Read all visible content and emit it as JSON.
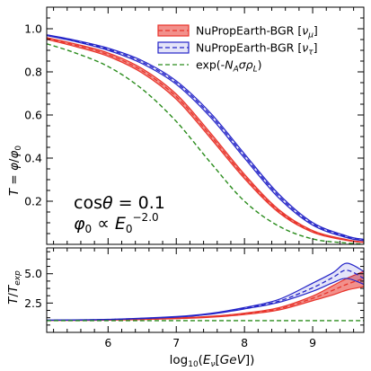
{
  "chart_data": [
    {
      "type": "line",
      "panel": "top",
      "title": "",
      "xlabel": "",
      "ylabel": "T = φ/φ₀",
      "xlim": [
        5.1,
        9.75
      ],
      "ylim": [
        0.0,
        1.1
      ],
      "yticks": [
        0.2,
        0.4,
        0.6,
        0.8,
        1.0
      ],
      "ytick_labels": [
        "0.2",
        "0.4",
        "0.6",
        "0.8",
        "1.0"
      ],
      "grid": false,
      "legend_position": "top-right",
      "annotation_lines": [
        "cosθ = 0.1",
        "φ₀ ∝ E₀^−2.0"
      ],
      "series": [
        {
          "name": "NuPropEarth-BGR [νμ]",
          "color": "#e8342b",
          "style": "band-with-dashed-center",
          "x": [
            5.1,
            5.5,
            6.0,
            6.5,
            7.0,
            7.5,
            8.0,
            8.5,
            9.0,
            9.5,
            9.75
          ],
          "y_center": [
            0.955,
            0.925,
            0.88,
            0.805,
            0.685,
            0.505,
            0.315,
            0.155,
            0.06,
            0.02,
            0.01
          ],
          "y_low": [
            0.951,
            0.919,
            0.872,
            0.795,
            0.673,
            0.493,
            0.305,
            0.148,
            0.056,
            0.018,
            0.009
          ],
          "y_high": [
            0.959,
            0.931,
            0.888,
            0.815,
            0.697,
            0.517,
            0.325,
            0.162,
            0.064,
            0.022,
            0.011
          ]
        },
        {
          "name": "NuPropEarth-BGR [ντ]",
          "color": "#2424c8",
          "style": "band-with-dashed-center",
          "x": [
            5.1,
            5.5,
            6.0,
            6.5,
            7.0,
            7.5,
            8.0,
            8.5,
            9.0,
            9.5,
            9.75
          ],
          "y_center": [
            0.97,
            0.945,
            0.905,
            0.845,
            0.75,
            0.6,
            0.41,
            0.225,
            0.095,
            0.035,
            0.02
          ],
          "y_low": [
            0.968,
            0.942,
            0.9,
            0.838,
            0.742,
            0.59,
            0.4,
            0.216,
            0.089,
            0.031,
            0.017
          ],
          "y_high": [
            0.972,
            0.948,
            0.91,
            0.852,
            0.758,
            0.61,
            0.42,
            0.234,
            0.101,
            0.039,
            0.023
          ]
        },
        {
          "name": "exp(-N_A σ ρ_L)",
          "color": "#2a8c1c",
          "style": "dashed",
          "x": [
            5.1,
            5.5,
            6.0,
            6.5,
            7.0,
            7.5,
            8.0,
            8.5,
            9.0,
            9.5,
            9.75
          ],
          "y": [
            0.93,
            0.89,
            0.825,
            0.72,
            0.57,
            0.38,
            0.2,
            0.085,
            0.025,
            0.006,
            0.002
          ]
        }
      ]
    },
    {
      "type": "line",
      "panel": "bottom",
      "title": "",
      "xlabel": "log₁₀(Eν[GeV])",
      "ylabel": "T/T_exp",
      "xlim": [
        5.1,
        9.75
      ],
      "ylim": [
        0.0,
        7.2
      ],
      "xticks": [
        6,
        7,
        8,
        9
      ],
      "xtick_labels": [
        "6",
        "7",
        "8",
        "9"
      ],
      "yticks": [
        2.5,
        5.0
      ],
      "ytick_labels": [
        "2.5",
        "5.0"
      ],
      "grid": false,
      "series": [
        {
          "name": "NuPropEarth-BGR [νμ]",
          "color": "#e8342b",
          "style": "band-with-dashed-center",
          "x": [
            5.1,
            6.0,
            7.0,
            7.5,
            8.0,
            8.5,
            9.0,
            9.3,
            9.5,
            9.75
          ],
          "y_center": [
            1.02,
            1.05,
            1.2,
            1.33,
            1.58,
            2.0,
            2.9,
            3.6,
            4.1,
            4.6
          ],
          "y_low": [
            1.01,
            1.04,
            1.17,
            1.29,
            1.52,
            1.9,
            2.7,
            3.2,
            3.6,
            3.9
          ],
          "y_high": [
            1.03,
            1.06,
            1.23,
            1.37,
            1.64,
            2.1,
            3.1,
            4.0,
            4.6,
            5.2
          ]
        },
        {
          "name": "NuPropEarth-BGR [ντ]",
          "color": "#2424c8",
          "style": "band-with-dashed-center",
          "x": [
            5.1,
            6.0,
            7.0,
            7.5,
            8.0,
            8.5,
            9.0,
            9.3,
            9.5,
            9.75
          ],
          "y_center": [
            1.04,
            1.1,
            1.32,
            1.58,
            2.05,
            2.65,
            3.8,
            4.7,
            5.3,
            4.6
          ],
          "y_low": [
            1.03,
            1.09,
            1.3,
            1.55,
            2.0,
            2.55,
            3.5,
            4.25,
            4.6,
            4.1
          ],
          "y_high": [
            1.05,
            1.11,
            1.35,
            1.62,
            2.12,
            2.8,
            4.2,
            5.1,
            5.9,
            5.2
          ]
        },
        {
          "name": "exp(-N_A σ ρ_L)",
          "color": "#2a8c1c",
          "style": "dashed",
          "x": [
            5.1,
            9.75
          ],
          "y": [
            1.0,
            1.0
          ]
        }
      ]
    }
  ]
}
